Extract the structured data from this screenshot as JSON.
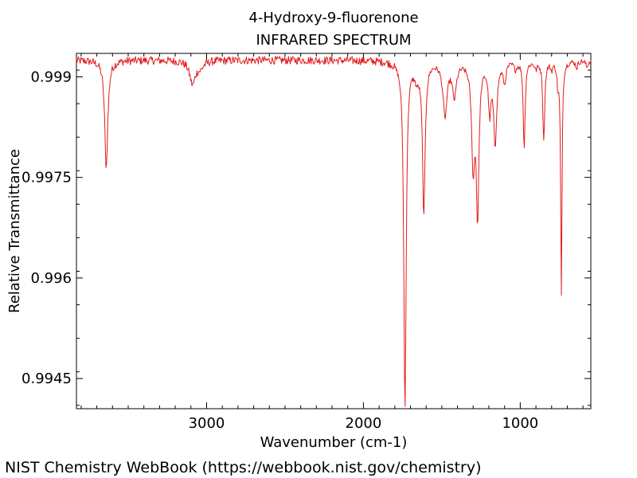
{
  "chart_data": {
    "type": "line",
    "title": "4-Hydroxy-9-fluorenone",
    "subtitle": "INFRARED SPECTRUM",
    "xlabel": "Wavenumber (cm-1)",
    "ylabel": "Relative Transmittance",
    "xlim": [
      3830,
      550
    ],
    "ylim": [
      0.99405,
      0.99935
    ],
    "x_ticks": [
      {
        "value": 3000,
        "label": "3000"
      },
      {
        "value": 2000,
        "label": "2000"
      },
      {
        "value": 1000,
        "label": "1000"
      }
    ],
    "y_ticks": [
      {
        "value": 0.999,
        "label": "0.999"
      },
      {
        "value": 0.9975,
        "label": "0.9975"
      },
      {
        "value": 0.996,
        "label": "0.996"
      },
      {
        "value": 0.9945,
        "label": "0.9945"
      }
    ],
    "grid": false,
    "color": "#e41a1c",
    "baseline": 0.99925,
    "peaks": [
      {
        "x": 3640,
        "y": 0.99765,
        "w": 12
      },
      {
        "x": 3090,
        "y": 0.9989,
        "w": 22
      },
      {
        "x": 3040,
        "y": 0.99915,
        "w": 25
      },
      {
        "x": 1735,
        "y": 0.99405,
        "w": 9
      },
      {
        "x": 1660,
        "y": 0.99905,
        "w": 18
      },
      {
        "x": 1615,
        "y": 0.99698,
        "w": 10
      },
      {
        "x": 1480,
        "y": 0.99845,
        "w": 16
      },
      {
        "x": 1420,
        "y": 0.99875,
        "w": 15
      },
      {
        "x": 1300,
        "y": 0.99775,
        "w": 12
      },
      {
        "x": 1272,
        "y": 0.99705,
        "w": 10
      },
      {
        "x": 1195,
        "y": 0.99855,
        "w": 10
      },
      {
        "x": 1160,
        "y": 0.99805,
        "w": 12
      },
      {
        "x": 1100,
        "y": 0.99895,
        "w": 10
      },
      {
        "x": 1030,
        "y": 0.99915,
        "w": 10
      },
      {
        "x": 975,
        "y": 0.99795,
        "w": 7
      },
      {
        "x": 900,
        "y": 0.99915,
        "w": 10
      },
      {
        "x": 850,
        "y": 0.99805,
        "w": 7
      },
      {
        "x": 800,
        "y": 0.99915,
        "w": 8
      },
      {
        "x": 760,
        "y": 0.99895,
        "w": 7
      },
      {
        "x": 738,
        "y": 0.99575,
        "w": 5
      },
      {
        "x": 640,
        "y": 0.99915,
        "w": 8
      },
      {
        "x": 575,
        "y": 0.99915,
        "w": 8
      }
    ]
  },
  "footer": {
    "credit": "NIST Chemistry WebBook (https://webbook.nist.gov/chemistry)"
  }
}
